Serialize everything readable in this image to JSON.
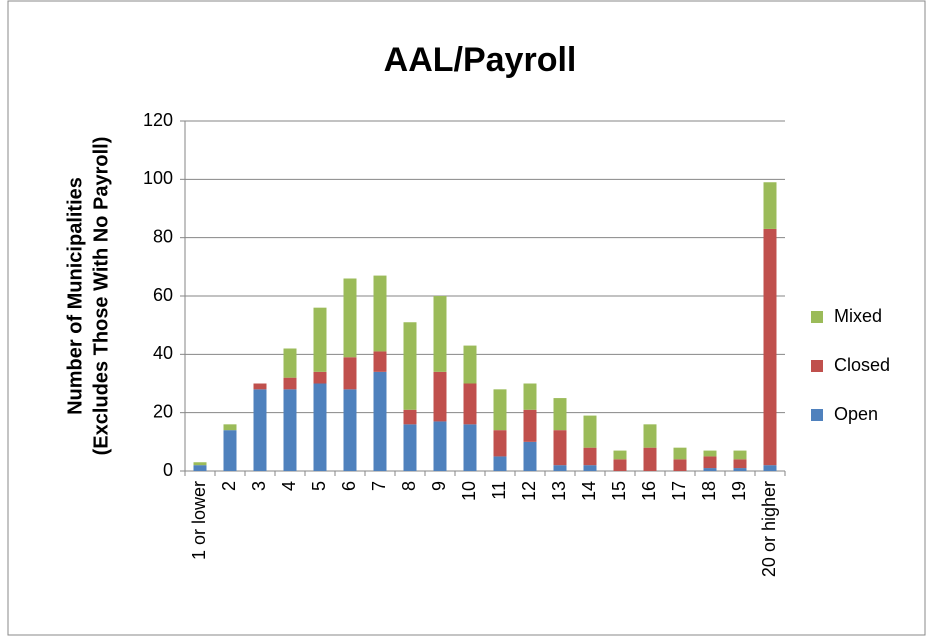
{
  "chart_data": {
    "type": "stacked_bar",
    "title": "AAL/Payroll",
    "y_label": [
      "Number of Municipalities",
      "(Excludes Those With No Payroll)"
    ],
    "categories": [
      "1 or lower",
      "2",
      "3",
      "4",
      "5",
      "6",
      "7",
      "8",
      "9",
      "10",
      "11",
      "12",
      "13",
      "14",
      "15",
      "16",
      "17",
      "18",
      "19",
      "20 or higher"
    ],
    "series": [
      {
        "name": "Open",
        "color": "#4f81bd",
        "values": [
          2,
          14,
          28,
          28,
          30,
          28,
          34,
          16,
          17,
          16,
          5,
          10,
          2,
          2,
          0,
          0,
          0,
          1,
          1,
          2
        ]
      },
      {
        "name": "Closed",
        "color": "#c0504d",
        "values": [
          0,
          0,
          2,
          4,
          4,
          11,
          7,
          5,
          17,
          14,
          9,
          11,
          12,
          6,
          4,
          8,
          4,
          4,
          3,
          81
        ]
      },
      {
        "name": "Mixed",
        "color": "#9bbb59",
        "values": [
          1,
          2,
          0,
          10,
          22,
          27,
          26,
          30,
          26,
          13,
          14,
          9,
          11,
          11,
          3,
          8,
          4,
          2,
          3,
          16
        ]
      }
    ],
    "ylim": [
      0,
      120
    ],
    "yticks": [
      0,
      20,
      40,
      60,
      80,
      100,
      120
    ],
    "grid": true,
    "legend": "right"
  }
}
